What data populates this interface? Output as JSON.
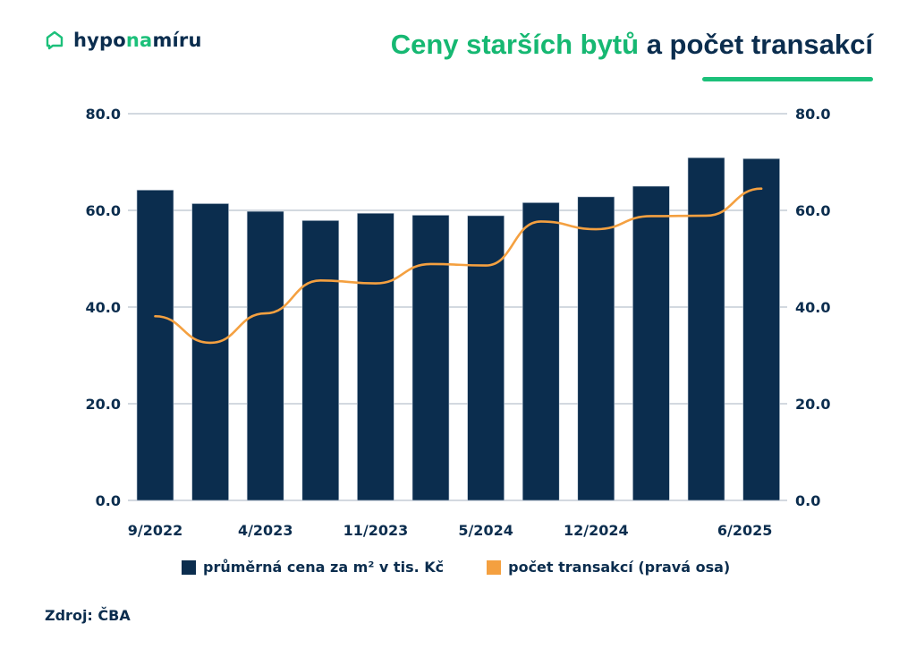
{
  "logo": {
    "part1": "hypo",
    "part2": "na",
    "part3": "míru",
    "icon": "house-chat-icon"
  },
  "title": {
    "highlight": "Ceny starších bytů",
    "rest": "a počet transakcí"
  },
  "source": "Zdroj: ČBA",
  "colors": {
    "bars": "#0b2d4e",
    "line": "#f4a040",
    "accent": "#1cc07a",
    "grid": "#d3d9e0"
  },
  "chart_data": {
    "type": "bar",
    "title": "Ceny starších bytů a počet transakcí",
    "x_ticks": [
      {
        "label": "9/2022",
        "at": 0
      },
      {
        "label": "4/2023",
        "at": 2
      },
      {
        "label": "11/2023",
        "at": 4
      },
      {
        "label": "5/2024",
        "at": 6
      },
      {
        "label": "12/2024",
        "at": 8
      },
      {
        "label": "6/2025",
        "at": 10.7
      }
    ],
    "ylim_left": [
      0,
      80
    ],
    "ylim_right": [
      0,
      80
    ],
    "yticks": [
      "0.0",
      "20.0",
      "40.0",
      "60.0",
      "80.0"
    ],
    "grid": true,
    "legend_placement": "bottom",
    "series": [
      {
        "name": "průměrná cena za m² v tis. Kč",
        "type": "bar",
        "axis": "left",
        "values": [
          64.2,
          61.4,
          59.8,
          57.9,
          59.4,
          59.0,
          58.9,
          61.6,
          62.8,
          65.0,
          70.9,
          70.7
        ]
      },
      {
        "name": "počet transakcí (pravá osa)",
        "type": "line",
        "axis": "right",
        "values": [
          38.1,
          32.6,
          38.7,
          45.5,
          44.9,
          48.9,
          48.6,
          57.7,
          56.1,
          58.8,
          58.9,
          64.5
        ]
      }
    ]
  }
}
